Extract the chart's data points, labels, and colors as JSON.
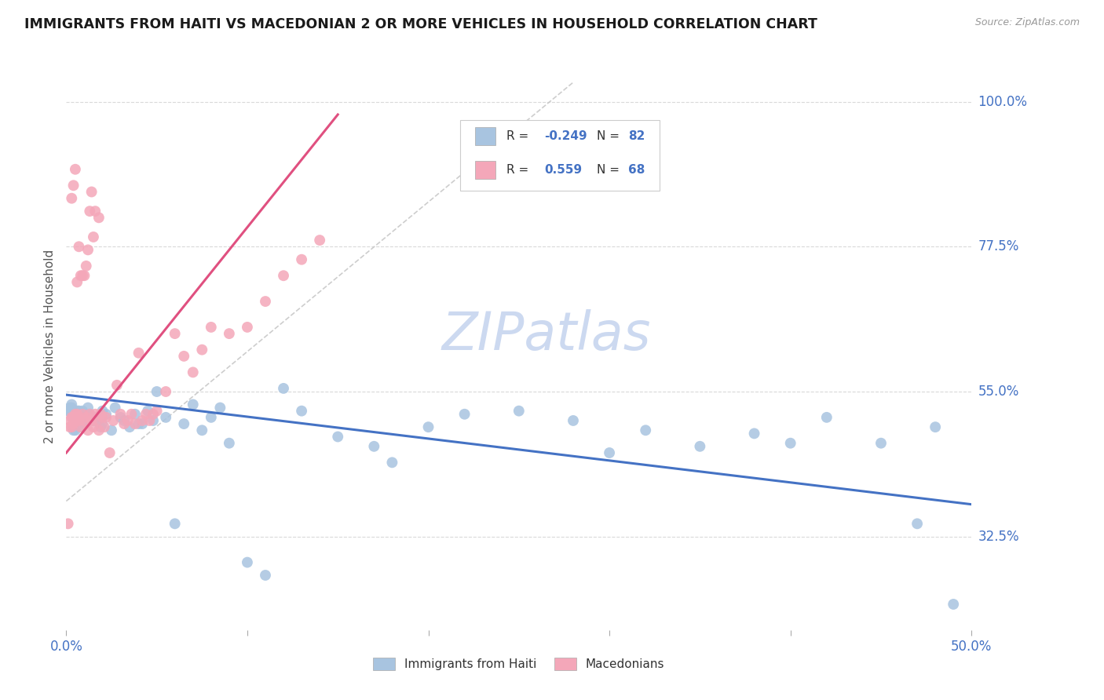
{
  "title": "IMMIGRANTS FROM HAITI VS MACEDONIAN 2 OR MORE VEHICLES IN HOUSEHOLD CORRELATION CHART",
  "source": "Source: ZipAtlas.com",
  "ylabel": "2 or more Vehicles in Household",
  "ytick_vals": [
    0.325,
    0.55,
    0.775,
    1.0
  ],
  "ytick_labels": [
    "32.5%",
    "55.0%",
    "77.5%",
    "100.0%"
  ],
  "xlim": [
    0.0,
    0.5
  ],
  "ylim": [
    0.18,
    1.06
  ],
  "legend_r_haiti": "-0.249",
  "legend_n_haiti": "82",
  "legend_r_mac": "0.559",
  "legend_n_mac": "68",
  "haiti_color": "#a8c4e0",
  "mac_color": "#f4a7b9",
  "haiti_line_color": "#4472c4",
  "mac_line_color": "#e05080",
  "ref_line_color": "#c8c8c8",
  "background_color": "#ffffff",
  "grid_color": "#d0d0d0",
  "label_color": "#4472c4",
  "watermark_color": "#ccd9f0",
  "haiti_trend_x0": 0.0,
  "haiti_trend_y0": 0.545,
  "haiti_trend_x1": 0.5,
  "haiti_trend_y1": 0.375,
  "mac_trend_x0": 0.0,
  "mac_trend_y0": 0.455,
  "mac_trend_x1": 0.15,
  "mac_trend_y1": 0.98,
  "ref_line_x0": 0.0,
  "ref_line_y0": 0.38,
  "ref_line_x1": 0.28,
  "ref_line_y1": 1.03,
  "haiti_x": [
    0.001,
    0.002,
    0.002,
    0.003,
    0.003,
    0.004,
    0.004,
    0.005,
    0.005,
    0.006,
    0.006,
    0.007,
    0.007,
    0.008,
    0.008,
    0.009,
    0.009,
    0.01,
    0.01,
    0.011,
    0.012,
    0.013,
    0.014,
    0.015,
    0.016,
    0.017,
    0.018,
    0.019,
    0.02,
    0.022,
    0.025,
    0.027,
    0.03,
    0.032,
    0.035,
    0.038,
    0.04,
    0.042,
    0.045,
    0.048,
    0.05,
    0.055,
    0.06,
    0.065,
    0.07,
    0.075,
    0.08,
    0.085,
    0.09,
    0.1,
    0.11,
    0.12,
    0.13,
    0.15,
    0.17,
    0.18,
    0.2,
    0.22,
    0.25,
    0.28,
    0.3,
    0.32,
    0.35,
    0.38,
    0.4,
    0.42,
    0.45,
    0.47,
    0.48,
    0.49,
    0.003,
    0.004,
    0.005,
    0.006,
    0.007,
    0.008,
    0.009,
    0.01,
    0.012,
    0.015,
    0.018,
    0.02
  ],
  "haiti_y": [
    0.52,
    0.52,
    0.525,
    0.515,
    0.525,
    0.51,
    0.52,
    0.505,
    0.515,
    0.515,
    0.52,
    0.51,
    0.52,
    0.505,
    0.515,
    0.515,
    0.52,
    0.5,
    0.515,
    0.51,
    0.505,
    0.515,
    0.51,
    0.505,
    0.505,
    0.51,
    0.505,
    0.495,
    0.5,
    0.515,
    0.49,
    0.525,
    0.51,
    0.505,
    0.495,
    0.515,
    0.5,
    0.5,
    0.52,
    0.505,
    0.55,
    0.51,
    0.345,
    0.5,
    0.53,
    0.49,
    0.51,
    0.525,
    0.47,
    0.285,
    0.265,
    0.555,
    0.52,
    0.48,
    0.465,
    0.44,
    0.495,
    0.515,
    0.52,
    0.505,
    0.455,
    0.49,
    0.465,
    0.485,
    0.47,
    0.51,
    0.47,
    0.345,
    0.495,
    0.22,
    0.53,
    0.49,
    0.49,
    0.51,
    0.495,
    0.515,
    0.505,
    0.515,
    0.525,
    0.51,
    0.51,
    0.52
  ],
  "mac_x": [
    0.001,
    0.002,
    0.002,
    0.003,
    0.003,
    0.004,
    0.004,
    0.005,
    0.005,
    0.006,
    0.006,
    0.007,
    0.008,
    0.009,
    0.01,
    0.011,
    0.012,
    0.013,
    0.014,
    0.015,
    0.016,
    0.017,
    0.018,
    0.019,
    0.02,
    0.021,
    0.022,
    0.024,
    0.026,
    0.028,
    0.03,
    0.032,
    0.034,
    0.036,
    0.038,
    0.04,
    0.042,
    0.044,
    0.046,
    0.048,
    0.05,
    0.055,
    0.06,
    0.065,
    0.07,
    0.075,
    0.08,
    0.09,
    0.1,
    0.11,
    0.12,
    0.13,
    0.14,
    0.003,
    0.004,
    0.005,
    0.006,
    0.007,
    0.008,
    0.009,
    0.01,
    0.011,
    0.012,
    0.013,
    0.014,
    0.015,
    0.016,
    0.018
  ],
  "mac_y": [
    0.345,
    0.495,
    0.505,
    0.495,
    0.51,
    0.5,
    0.51,
    0.505,
    0.515,
    0.51,
    0.515,
    0.505,
    0.495,
    0.515,
    0.505,
    0.51,
    0.49,
    0.515,
    0.505,
    0.495,
    0.515,
    0.505,
    0.49,
    0.515,
    0.51,
    0.495,
    0.51,
    0.455,
    0.505,
    0.56,
    0.515,
    0.5,
    0.505,
    0.515,
    0.5,
    0.61,
    0.505,
    0.515,
    0.505,
    0.515,
    0.52,
    0.55,
    0.64,
    0.605,
    0.58,
    0.615,
    0.65,
    0.64,
    0.65,
    0.69,
    0.73,
    0.755,
    0.785,
    0.85,
    0.87,
    0.895,
    0.72,
    0.775,
    0.73,
    0.73,
    0.73,
    0.745,
    0.77,
    0.83,
    0.86,
    0.79,
    0.83,
    0.82
  ]
}
